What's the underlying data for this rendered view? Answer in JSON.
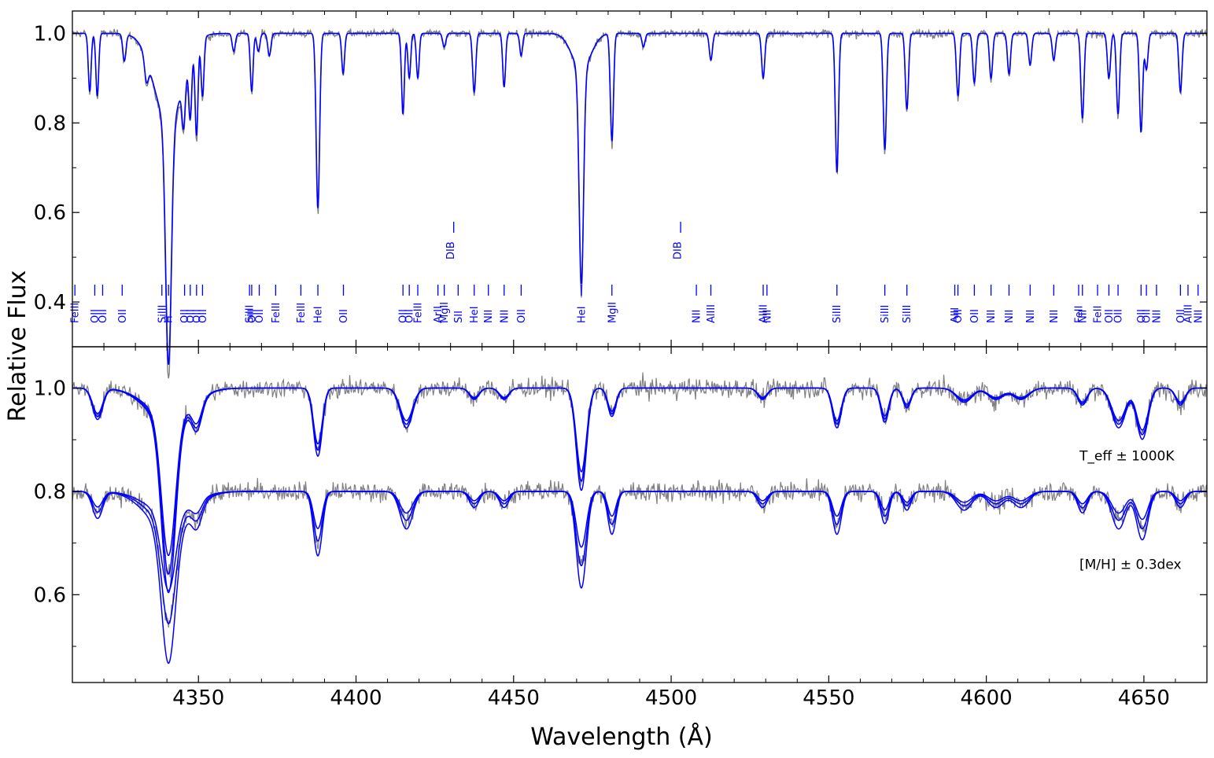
{
  "chart_data": {
    "type": "line",
    "xlabel": "Wavelength (Å)",
    "ylabel": "Relative Flux",
    "xlim": [
      4310,
      4670
    ],
    "x_ticks": [
      4350,
      4400,
      4450,
      4500,
      4550,
      4600,
      4650
    ],
    "x_tick_labels": [
      "4350",
      "4400",
      "4450",
      "4500",
      "4550",
      "4600",
      "4650"
    ],
    "colors": {
      "observed": "#808080",
      "model": "#0000ff",
      "labels": "#0000ff"
    },
    "panels": [
      {
        "name": "top",
        "ylim": [
          0.3,
          1.05
        ],
        "y_ticks": [
          0.4,
          0.6,
          0.8,
          1.0
        ],
        "y_tick_labels": [
          "0.4",
          "0.6",
          "0.8",
          "1.0"
        ],
        "continuum": 1.0,
        "lines": [
          {
            "w": 4315.5,
            "d": 0.13,
            "s": 0.45
          },
          {
            "w": 4317.9,
            "d": 0.14,
            "s": 0.45
          },
          {
            "w": 4326.5,
            "d": 0.06,
            "s": 0.5
          },
          {
            "w": 4333.5,
            "d": 0.05,
            "s": 0.6
          },
          {
            "w": 4340.5,
            "d": 0.54,
            "s": 0.9
          },
          {
            "w": 4340.5,
            "d": 0.2,
            "s": 4.5
          },
          {
            "w": 4345.3,
            "d": 0.1,
            "s": 0.5
          },
          {
            "w": 4347.4,
            "d": 0.13,
            "s": 0.45
          },
          {
            "w": 4349.4,
            "d": 0.2,
            "s": 0.45
          },
          {
            "w": 4351.3,
            "d": 0.13,
            "s": 0.45
          },
          {
            "w": 4361.2,
            "d": 0.04,
            "s": 0.5
          },
          {
            "w": 4366.9,
            "d": 0.13,
            "s": 0.45
          },
          {
            "w": 4369.0,
            "d": 0.04,
            "s": 0.5
          },
          {
            "w": 4372.5,
            "d": 0.05,
            "s": 0.5
          },
          {
            "w": 4387.9,
            "d": 0.39,
            "s": 0.55
          },
          {
            "w": 4395.9,
            "d": 0.09,
            "s": 0.45
          },
          {
            "w": 4414.9,
            "d": 0.18,
            "s": 0.45
          },
          {
            "w": 4416.9,
            "d": 0.1,
            "s": 0.45
          },
          {
            "w": 4419.6,
            "d": 0.1,
            "s": 0.45
          },
          {
            "w": 4428.0,
            "d": 0.03,
            "s": 0.5
          },
          {
            "w": 4437.5,
            "d": 0.13,
            "s": 0.5
          },
          {
            "w": 4447.0,
            "d": 0.12,
            "s": 0.45
          },
          {
            "w": 4452.4,
            "d": 0.05,
            "s": 0.45
          },
          {
            "w": 4471.5,
            "d": 0.48,
            "s": 0.7
          },
          {
            "w": 4471.5,
            "d": 0.08,
            "s": 3.0
          },
          {
            "w": 4481.2,
            "d": 0.24,
            "s": 0.5
          },
          {
            "w": 4491.2,
            "d": 0.03,
            "s": 0.5
          },
          {
            "w": 4512.6,
            "d": 0.06,
            "s": 0.5
          },
          {
            "w": 4529.2,
            "d": 0.1,
            "s": 0.5
          },
          {
            "w": 4552.6,
            "d": 0.31,
            "s": 0.5
          },
          {
            "w": 4567.8,
            "d": 0.26,
            "s": 0.5
          },
          {
            "w": 4574.8,
            "d": 0.17,
            "s": 0.5
          },
          {
            "w": 4591.0,
            "d": 0.14,
            "s": 0.5
          },
          {
            "w": 4596.2,
            "d": 0.11,
            "s": 0.5
          },
          {
            "w": 4601.5,
            "d": 0.1,
            "s": 0.5
          },
          {
            "w": 4607.2,
            "d": 0.09,
            "s": 0.5
          },
          {
            "w": 4613.9,
            "d": 0.07,
            "s": 0.5
          },
          {
            "w": 4621.4,
            "d": 0.06,
            "s": 0.5
          },
          {
            "w": 4630.5,
            "d": 0.19,
            "s": 0.5
          },
          {
            "w": 4638.9,
            "d": 0.1,
            "s": 0.5
          },
          {
            "w": 4641.8,
            "d": 0.18,
            "s": 0.5
          },
          {
            "w": 4649.1,
            "d": 0.22,
            "s": 0.5
          },
          {
            "w": 4650.8,
            "d": 0.08,
            "s": 0.5
          },
          {
            "w": 4661.6,
            "d": 0.13,
            "s": 0.5
          }
        ]
      },
      {
        "name": "bottom",
        "ylim": [
          0.43,
          1.08
        ],
        "y_ticks": [
          0.6,
          0.8,
          1.0
        ],
        "y_tick_labels": [
          "0.6",
          "0.8",
          "1.0"
        ],
        "series": [
          {
            "continuum": 1.0,
            "annotation": "T_eff ± 1000K",
            "variants": [
              0.9,
              1.0,
              1.1
            ],
            "lines": [
              {
                "w": 4318,
                "d": 0.055,
                "s": 1.6
              },
              {
                "w": 4340.5,
                "d": 0.3,
                "s": 2.2
              },
              {
                "w": 4340.5,
                "d": 0.06,
                "s": 7
              },
              {
                "w": 4349.5,
                "d": 0.05,
                "s": 1.6
              },
              {
                "w": 4387.9,
                "d": 0.12,
                "s": 1.4
              },
              {
                "w": 4416,
                "d": 0.07,
                "s": 2.0
              },
              {
                "w": 4437.5,
                "d": 0.02,
                "s": 1.5
              },
              {
                "w": 4447,
                "d": 0.02,
                "s": 1.5
              },
              {
                "w": 4471.5,
                "d": 0.18,
                "s": 1.6
              },
              {
                "w": 4481.2,
                "d": 0.05,
                "s": 1.3
              },
              {
                "w": 4529,
                "d": 0.02,
                "s": 1.5
              },
              {
                "w": 4552.6,
                "d": 0.07,
                "s": 1.4
              },
              {
                "w": 4567.8,
                "d": 0.06,
                "s": 1.3
              },
              {
                "w": 4574.8,
                "d": 0.035,
                "s": 1.3
              },
              {
                "w": 4593,
                "d": 0.025,
                "s": 2.5
              },
              {
                "w": 4603,
                "d": 0.02,
                "s": 2.5
              },
              {
                "w": 4611,
                "d": 0.02,
                "s": 2.5
              },
              {
                "w": 4630.5,
                "d": 0.03,
                "s": 1.5
              },
              {
                "w": 4642,
                "d": 0.07,
                "s": 2.2
              },
              {
                "w": 4649.5,
                "d": 0.09,
                "s": 1.8
              },
              {
                "w": 4661.6,
                "d": 0.03,
                "s": 1.5
              }
            ]
          },
          {
            "continuum": 0.8,
            "annotation": "[M/H] ± 0.3dex",
            "variants": [
              0.75,
              1.0,
              1.3
            ],
            "lines": [
              {
                "w": 4318,
                "d": 0.05,
                "s": 1.6
              },
              {
                "w": 4340.5,
                "d": 0.25,
                "s": 2.2
              },
              {
                "w": 4340.5,
                "d": 0.07,
                "s": 7
              },
              {
                "w": 4349.5,
                "d": 0.04,
                "s": 1.6
              },
              {
                "w": 4387.9,
                "d": 0.12,
                "s": 1.4
              },
              {
                "w": 4416,
                "d": 0.07,
                "s": 2.0
              },
              {
                "w": 4437.5,
                "d": 0.03,
                "s": 1.5
              },
              {
                "w": 4447,
                "d": 0.03,
                "s": 1.5
              },
              {
                "w": 4471.5,
                "d": 0.18,
                "s": 1.6
              },
              {
                "w": 4481.2,
                "d": 0.08,
                "s": 1.3
              },
              {
                "w": 4529,
                "d": 0.03,
                "s": 1.5
              },
              {
                "w": 4552.6,
                "d": 0.08,
                "s": 1.4
              },
              {
                "w": 4567.8,
                "d": 0.06,
                "s": 1.3
              },
              {
                "w": 4574.8,
                "d": 0.035,
                "s": 1.3
              },
              {
                "w": 4593,
                "d": 0.035,
                "s": 2.5
              },
              {
                "w": 4603,
                "d": 0.03,
                "s": 2.5
              },
              {
                "w": 4611,
                "d": 0.03,
                "s": 2.5
              },
              {
                "w": 4630.5,
                "d": 0.04,
                "s": 1.5
              },
              {
                "w": 4642,
                "d": 0.07,
                "s": 2.2
              },
              {
                "w": 4649.5,
                "d": 0.09,
                "s": 1.8
              },
              {
                "w": 4661.6,
                "d": 0.03,
                "s": 1.5
              }
            ]
          }
        ]
      }
    ],
    "line_labels": [
      {
        "label": "FeIII",
        "w": 4310.8
      },
      {
        "label": "OII",
        "w": 4317.1
      },
      {
        "label": "OII",
        "w": 4319.6
      },
      {
        "label": "OII",
        "w": 4325.8
      },
      {
        "label": "SiIII",
        "w": 4338.4
      },
      {
        "label": "H",
        "w": 4340.5
      },
      {
        "label": "OII",
        "w": 4345.6
      },
      {
        "label": "OII",
        "w": 4347.4
      },
      {
        "label": "OII",
        "w": 4349.4
      },
      {
        "label": "OII",
        "w": 4351.3
      },
      {
        "label": "SiIII",
        "w": 4366.2
      },
      {
        "label": "OII",
        "w": 4366.9
      },
      {
        "label": "OII",
        "w": 4369.3
      },
      {
        "label": "FeIII",
        "w": 4374.5
      },
      {
        "label": "FeIII",
        "w": 4382.5
      },
      {
        "label": "HeI",
        "w": 4387.9
      },
      {
        "label": "OII",
        "w": 4396.0
      },
      {
        "label": "OII",
        "w": 4414.9
      },
      {
        "label": "OII",
        "w": 4416.9
      },
      {
        "label": "FeIII",
        "w": 4419.6
      },
      {
        "label": "ArII",
        "w": 4426.0
      },
      {
        "label": "MgII",
        "w": 4428.0
      },
      {
        "label": "SII",
        "w": 4432.4
      },
      {
        "label": "HeI",
        "w": 4437.5
      },
      {
        "label": "NII",
        "w": 4442.0
      },
      {
        "label": "NII",
        "w": 4447.0
      },
      {
        "label": "OII",
        "w": 4452.4
      },
      {
        "label": "HeI",
        "w": 4471.5
      },
      {
        "label": "MgII",
        "w": 4481.2
      },
      {
        "label": "NII",
        "w": 4508.0
      },
      {
        "label": "AlIII",
        "w": 4512.6
      },
      {
        "label": "AlIII",
        "w": 4529.2
      },
      {
        "label": "NII",
        "w": 4530.4
      },
      {
        "label": "SiIII",
        "w": 4552.6
      },
      {
        "label": "SiIII",
        "w": 4567.8
      },
      {
        "label": "SiIII",
        "w": 4574.8
      },
      {
        "label": "AlII",
        "w": 4590.0
      },
      {
        "label": "OII",
        "w": 4591.0
      },
      {
        "label": "OII",
        "w": 4596.2
      },
      {
        "label": "NII",
        "w": 4601.5
      },
      {
        "label": "NII",
        "w": 4607.2
      },
      {
        "label": "NII",
        "w": 4613.9
      },
      {
        "label": "NII",
        "w": 4621.4
      },
      {
        "label": "FeII",
        "w": 4629.3
      },
      {
        "label": "NII",
        "w": 4630.5
      },
      {
        "label": "FeII",
        "w": 4635.3
      },
      {
        "label": "OII",
        "w": 4638.9
      },
      {
        "label": "OII",
        "w": 4641.8
      },
      {
        "label": "OII",
        "w": 4649.1
      },
      {
        "label": "OII",
        "w": 4650.8
      },
      {
        "label": "NII",
        "w": 4654.0
      },
      {
        "label": "OII",
        "w": 4661.6
      },
      {
        "label": "AlIII",
        "w": 4664.0
      },
      {
        "label": "NII",
        "w": 4667.2
      }
    ],
    "dib_labels": [
      {
        "label": "DIB",
        "w": 4430.0
      },
      {
        "label": "DIB",
        "w": 4502.0
      }
    ]
  }
}
